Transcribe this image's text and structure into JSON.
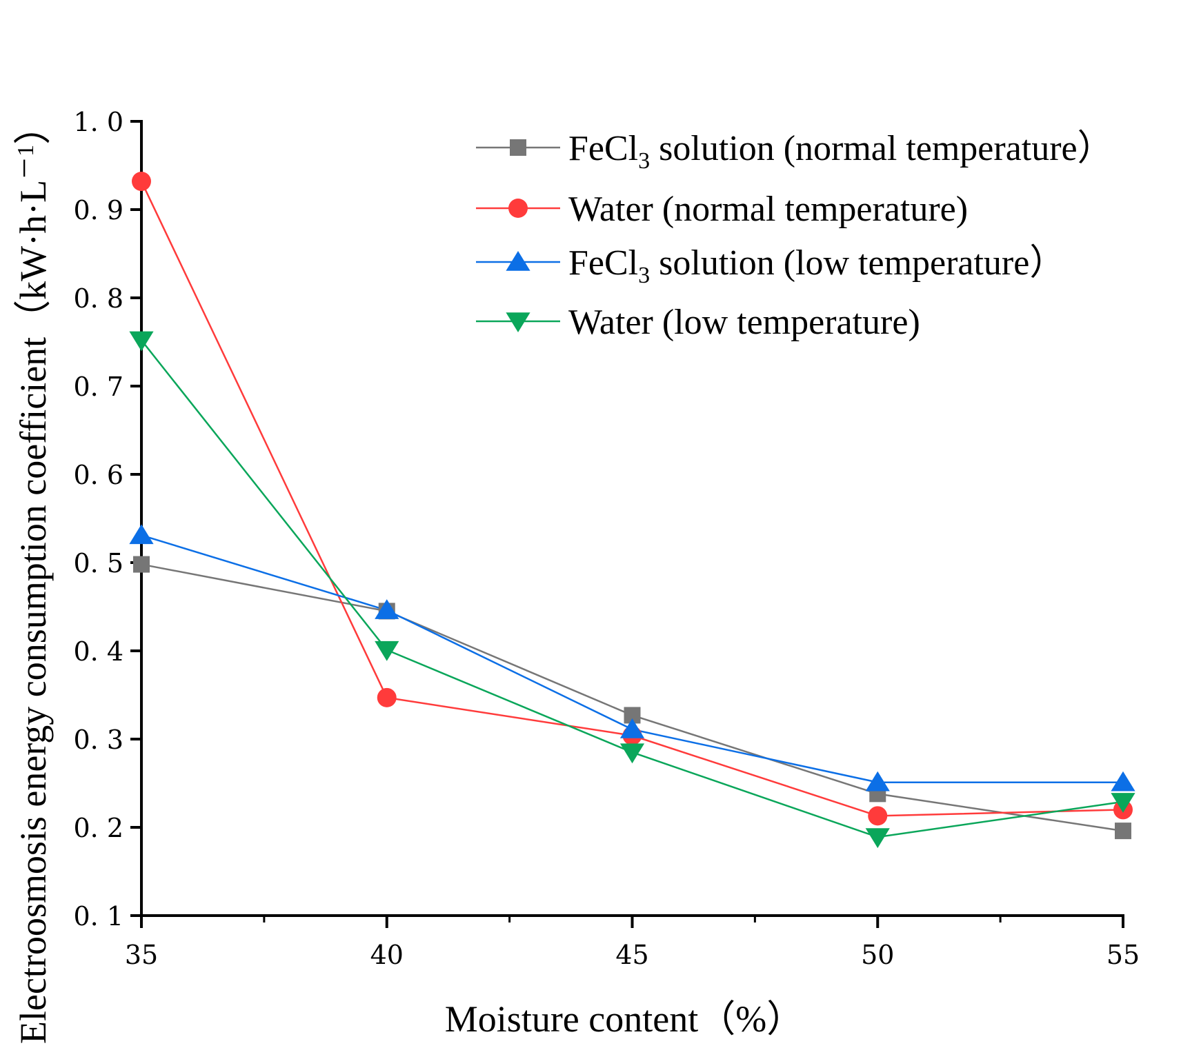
{
  "chart_data": {
    "type": "line",
    "title": "",
    "xlabel": "Moisture content（%）",
    "ylabel": "Electroosmosis energy consumption coefficient（kW·h·L",
    "ylabel_unit_exponent": "－1",
    "ylabel_close": "）",
    "xlim": [
      35,
      55
    ],
    "ylim": [
      0.1,
      1.0
    ],
    "x_ticks": [
      35,
      40,
      45,
      50,
      55
    ],
    "x_tick_labels": [
      "35",
      "40",
      "45",
      "50",
      "55"
    ],
    "y_ticks": [
      0.1,
      0.2,
      0.3,
      0.4,
      0.5,
      0.6,
      0.7,
      0.8,
      0.9,
      1.0
    ],
    "y_tick_labels": [
      "0. 1",
      "0. 2",
      "0. 3",
      "0. 4",
      "0. 5",
      "0. 6",
      "0. 7",
      "0. 8",
      "0. 9",
      "1. 0"
    ],
    "grid": false,
    "legend_position": "top-right",
    "x": [
      35,
      40,
      45,
      50,
      55
    ],
    "series": [
      {
        "name": "FeCl3 solution (normal temperature）",
        "legend_parts": [
          "FeCl",
          "3",
          " solution (normal temperature）"
        ],
        "color": "#767676",
        "marker": "square",
        "values": [
          0.498,
          0.445,
          0.327,
          0.238,
          0.196
        ]
      },
      {
        "name": "Water (normal temperature)",
        "legend_parts": [
          "Water (normal temperature)",
          "",
          ""
        ],
        "color": "#ff3b3b",
        "marker": "circle",
        "values": [
          0.932,
          0.347,
          0.304,
          0.213,
          0.22
        ]
      },
      {
        "name": "FeCl3 solution (low temperature）",
        "legend_parts": [
          "FeCl",
          "3",
          " solution (low temperature）"
        ],
        "color": "#0c6fe6",
        "marker": "triangle-up",
        "values": [
          0.531,
          0.446,
          0.311,
          0.251,
          0.251
        ]
      },
      {
        "name": "Water (low temperature)",
        "legend_parts": [
          "Water (low temperature)",
          "",
          ""
        ],
        "color": "#0aa65a",
        "marker": "triangle-down",
        "values": [
          0.752,
          0.401,
          0.285,
          0.189,
          0.229
        ]
      }
    ]
  }
}
